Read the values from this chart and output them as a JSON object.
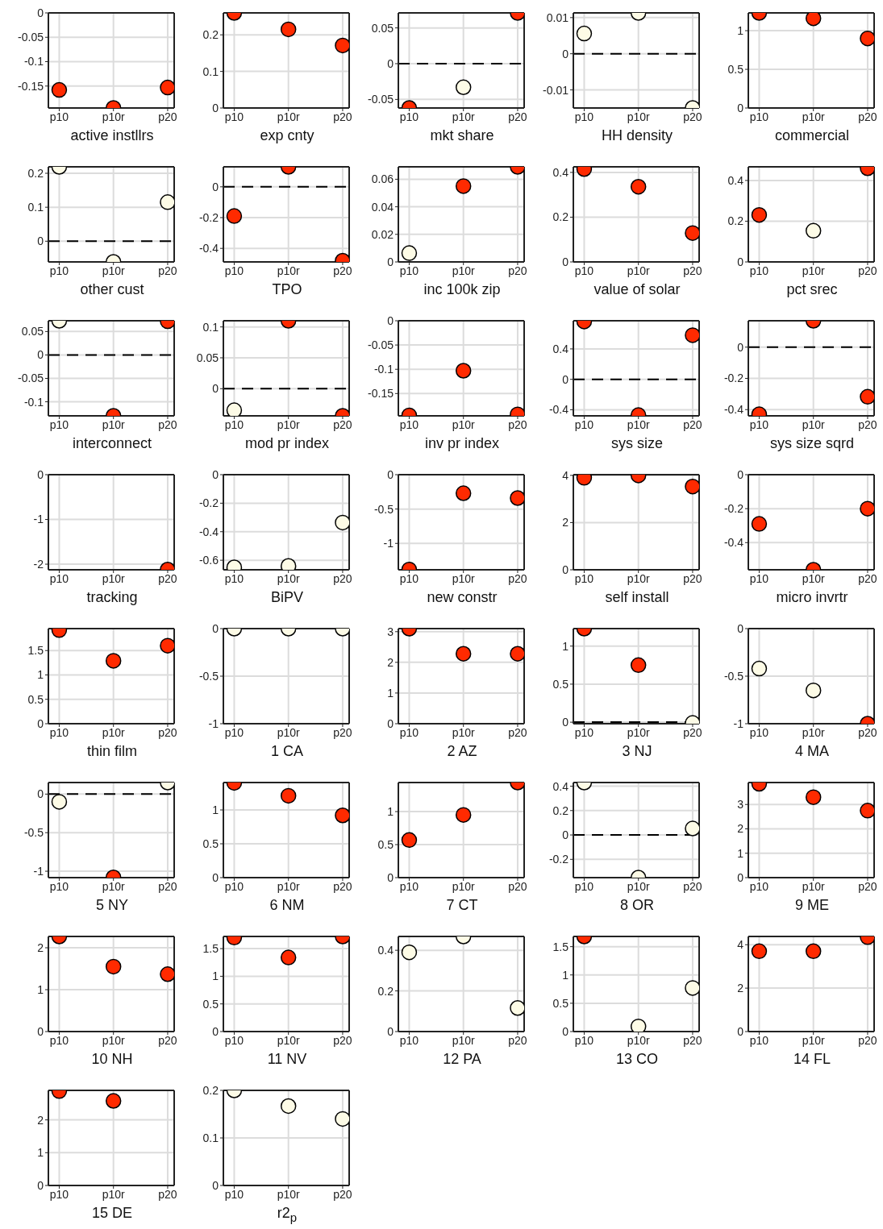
{
  "chart_data": [
    {
      "type": "scatter",
      "xlabel": "active instllrs",
      "categories": [
        "p10",
        "p10r",
        "p20"
      ],
      "values": [
        -0.158,
        -0.195,
        -0.153
      ],
      "colors": [
        "#ff2a00",
        "#ff2a00",
        "#ff2a00"
      ],
      "ylim": [
        -0.195,
        0
      ],
      "yticks": [
        -0.15,
        -0.1,
        -0.05,
        0
      ],
      "grid": true,
      "marker": "circle"
    },
    {
      "type": "scatter",
      "xlabel": "exp cnty",
      "categories": [
        "p10",
        "p10r",
        "p20"
      ],
      "values": [
        0.26,
        0.215,
        0.171
      ],
      "colors": [
        "#ff2a00",
        "#ff2a00",
        "#ff2a00"
      ],
      "ylim": [
        0,
        0.26
      ],
      "yticks": [
        0,
        0.1,
        0.2
      ],
      "grid": true,
      "marker": "circle"
    },
    {
      "type": "scatter",
      "xlabel": "mkt share",
      "categories": [
        "p10",
        "p10r",
        "p20"
      ],
      "values": [
        -0.062,
        -0.033,
        0.071
      ],
      "colors": [
        "#ff2a00",
        "#fdfbe6",
        "#ff2a00"
      ],
      "ylim": [
        -0.062,
        0.071
      ],
      "yticks": [
        -0.05,
        0,
        0.05
      ],
      "grid": true,
      "marker": "circle",
      "ref_lines": [
        {
          "axis": "y",
          "value": 0,
          "line_style": "dashed"
        }
      ]
    },
    {
      "type": "scatter",
      "xlabel": "HH density",
      "categories": [
        "p10",
        "p10r",
        "p20"
      ],
      "values": [
        0.0056,
        0.0113,
        -0.015
      ],
      "colors": [
        "#fdfbe6",
        "#fdfbe6",
        "#fdfbe6"
      ],
      "ylim": [
        -0.015,
        0.0113
      ],
      "yticks": [
        -0.01,
        0,
        0.01
      ],
      "grid": true,
      "marker": "circle",
      "ref_lines": [
        {
          "axis": "y",
          "value": 0,
          "line_style": "dashed"
        }
      ]
    },
    {
      "type": "scatter",
      "xlabel": "commercial",
      "categories": [
        "p10",
        "p10r",
        "p20"
      ],
      "values": [
        1.23,
        1.16,
        0.9
      ],
      "colors": [
        "#ff2a00",
        "#ff2a00",
        "#ff2a00"
      ],
      "ylim": [
        0,
        1.23
      ],
      "yticks": [
        0,
        0.5,
        1
      ],
      "grid": true,
      "marker": "circle"
    },
    {
      "type": "scatter",
      "xlabel": "other cust",
      "categories": [
        "p10",
        "p10r",
        "p20"
      ],
      "values": [
        0.219,
        -0.061,
        0.115
      ],
      "colors": [
        "#fdfbe6",
        "#fdfbe6",
        "#fdfbe6"
      ],
      "ylim": [
        -0.061,
        0.219
      ],
      "yticks": [
        0,
        0.1,
        0.2
      ],
      "grid": true,
      "marker": "circle",
      "ref_lines": [
        {
          "axis": "y",
          "value": 0,
          "line_style": "dashed"
        }
      ]
    },
    {
      "type": "scatter",
      "xlabel": "TPO",
      "categories": [
        "p10",
        "p10r",
        "p20"
      ],
      "values": [
        -0.19,
        0.13,
        -0.48
      ],
      "colors": [
        "#ff2a00",
        "#ff2a00",
        "#ff2a00"
      ],
      "ylim": [
        -0.488,
        0.13
      ],
      "yticks": [
        -0.4,
        -0.2,
        0
      ],
      "grid": true,
      "marker": "circle",
      "ref_lines": [
        {
          "axis": "y",
          "value": 0,
          "line_style": "dashed"
        }
      ]
    },
    {
      "type": "scatter",
      "xlabel": "inc 100k zip",
      "categories": [
        "p10",
        "p10r",
        "p20"
      ],
      "values": [
        0.0064,
        0.055,
        0.069
      ],
      "colors": [
        "#fdfbe6",
        "#ff2a00",
        "#ff2a00"
      ],
      "ylim": [
        0,
        0.069
      ],
      "yticks": [
        0,
        0.02,
        0.04,
        0.06
      ],
      "grid": true,
      "marker": "circle"
    },
    {
      "type": "scatter",
      "xlabel": "value of solar",
      "categories": [
        "p10",
        "p10r",
        "p20"
      ],
      "values": [
        0.415,
        0.336,
        0.129
      ],
      "colors": [
        "#ff2a00",
        "#ff2a00",
        "#ff2a00"
      ],
      "ylim": [
        0,
        0.425
      ],
      "yticks": [
        0,
        0.2,
        0.4
      ],
      "grid": true,
      "marker": "circle"
    },
    {
      "type": "scatter",
      "xlabel": "pct srec",
      "categories": [
        "p10",
        "p10r",
        "p20"
      ],
      "values": [
        0.231,
        0.153,
        0.46
      ],
      "colors": [
        "#ff2a00",
        "#fdfbe6",
        "#ff2a00"
      ],
      "ylim": [
        0,
        0.467
      ],
      "yticks": [
        0,
        0.2,
        0.4
      ],
      "grid": true,
      "marker": "circle"
    },
    {
      "type": "scatter",
      "xlabel": "interconnect",
      "categories": [
        "p10",
        "p10r",
        "p20"
      ],
      "values": [
        0.073,
        -0.13,
        0.072
      ],
      "colors": [
        "#fdfbe6",
        "#ff2a00",
        "#ff2a00"
      ],
      "ylim": [
        -0.13,
        0.073
      ],
      "yticks": [
        -0.1,
        -0.05,
        0,
        0.05
      ],
      "grid": true,
      "marker": "circle",
      "ref_lines": [
        {
          "axis": "y",
          "value": 0,
          "line_style": "dashed"
        }
      ]
    },
    {
      "type": "scatter",
      "xlabel": "mod pr index",
      "categories": [
        "p10",
        "p10r",
        "p20"
      ],
      "values": [
        -0.035,
        0.11,
        -0.044
      ],
      "colors": [
        "#fdfbe6",
        "#ff2a00",
        "#ff2a00"
      ],
      "ylim": [
        -0.044,
        0.11
      ],
      "yticks": [
        0,
        0.05,
        0.1
      ],
      "grid": true,
      "marker": "circle",
      "ref_lines": [
        {
          "axis": "y",
          "value": 0,
          "line_style": "dashed"
        }
      ]
    },
    {
      "type": "scatter",
      "xlabel": "inv pr index",
      "categories": [
        "p10",
        "p10r",
        "p20"
      ],
      "values": [
        -0.195,
        -0.103,
        -0.193
      ],
      "colors": [
        "#ff2a00",
        "#ff2a00",
        "#ff2a00"
      ],
      "ylim": [
        -0.196,
        0
      ],
      "yticks": [
        -0.15,
        -0.1,
        -0.05,
        0
      ],
      "grid": true,
      "marker": "circle"
    },
    {
      "type": "scatter",
      "xlabel": "sys size",
      "categories": [
        "p10",
        "p10r",
        "p20"
      ],
      "values": [
        0.76,
        -0.47,
        0.58
      ],
      "colors": [
        "#ff2a00",
        "#ff2a00",
        "#ff2a00"
      ],
      "ylim": [
        -0.48,
        0.77
      ],
      "yticks": [
        -0.4,
        0,
        0.4
      ],
      "grid": true,
      "marker": "circle",
      "ref_lines": [
        {
          "axis": "y",
          "value": 0,
          "line_style": "dashed"
        }
      ]
    },
    {
      "type": "scatter",
      "xlabel": "sys size sqrd",
      "categories": [
        "p10",
        "p10r",
        "p20"
      ],
      "values": [
        -0.43,
        0.169,
        -0.318
      ],
      "colors": [
        "#ff2a00",
        "#ff2a00",
        "#ff2a00"
      ],
      "ylim": [
        -0.44,
        0.169
      ],
      "yticks": [
        -0.4,
        -0.2,
        0
      ],
      "grid": true,
      "marker": "circle",
      "ref_lines": [
        {
          "axis": "y",
          "value": 0,
          "line_style": "dashed"
        }
      ]
    },
    {
      "type": "scatter",
      "xlabel": "tracking",
      "categories": [
        "p10",
        "p10r",
        "p20"
      ],
      "values": [
        null,
        null,
        -2.12
      ],
      "colors": [
        "#ff2a00",
        "#ff2a00",
        "#ff2a00"
      ],
      "ylim": [
        -2.125,
        0
      ],
      "yticks": [
        -2,
        -1,
        0
      ],
      "grid": true,
      "marker": "circle"
    },
    {
      "type": "scatter",
      "xlabel": "BiPV",
      "categories": [
        "p10",
        "p10r",
        "p20"
      ],
      "values": [
        -0.65,
        -0.64,
        -0.336
      ],
      "colors": [
        "#fdfbe6",
        "#fdfbe6",
        "#fdfbe6"
      ],
      "ylim": [
        -0.667,
        0
      ],
      "yticks": [
        -0.6,
        -0.4,
        -0.2,
        0
      ],
      "grid": true,
      "marker": "circle"
    },
    {
      "type": "scatter",
      "xlabel": "new constr",
      "categories": [
        "p10",
        "p10r",
        "p20"
      ],
      "values": [
        -1.38,
        -0.27,
        -0.34
      ],
      "colors": [
        "#ff2a00",
        "#ff2a00",
        "#ff2a00"
      ],
      "ylim": [
        -1.384,
        0
      ],
      "yticks": [
        -1,
        -0.5,
        0
      ],
      "grid": true,
      "marker": "circle"
    },
    {
      "type": "scatter",
      "xlabel": "self install",
      "categories": [
        "p10",
        "p10r",
        "p20"
      ],
      "values": [
        3.9,
        4.0,
        3.53
      ],
      "colors": [
        "#ff2a00",
        "#ff2a00",
        "#ff2a00"
      ],
      "ylim": [
        0,
        4.03
      ],
      "yticks": [
        0,
        2,
        4
      ],
      "grid": true,
      "marker": "circle"
    },
    {
      "type": "scatter",
      "xlabel": "micro invrtr",
      "categories": [
        "p10",
        "p10r",
        "p20"
      ],
      "values": [
        -0.29,
        -0.56,
        -0.2
      ],
      "colors": [
        "#ff2a00",
        "#ff2a00",
        "#ff2a00"
      ],
      "ylim": [
        -0.56,
        0
      ],
      "yticks": [
        -0.4,
        -0.2,
        0
      ],
      "grid": true,
      "marker": "circle"
    },
    {
      "type": "scatter",
      "xlabel": "thin film",
      "categories": [
        "p10",
        "p10r",
        "p20"
      ],
      "values": [
        1.92,
        1.29,
        1.6
      ],
      "colors": [
        "#ff2a00",
        "#ff2a00",
        "#ff2a00"
      ],
      "ylim": [
        0,
        1.95
      ],
      "yticks": [
        0,
        0.5,
        1,
        1.5
      ],
      "grid": true,
      "marker": "circle"
    },
    {
      "type": "scatter",
      "xlabel": "1 CA",
      "categories": [
        "p10",
        "p10r",
        "p20"
      ],
      "values": [
        0,
        0,
        0
      ],
      "colors": [
        "#fdfbe6",
        "#fdfbe6",
        "#fdfbe6"
      ],
      "ylim": [
        -1,
        0
      ],
      "yticks": [
        -1,
        -0.5,
        0
      ],
      "grid": true,
      "marker": "circle"
    },
    {
      "type": "scatter",
      "xlabel": "2 AZ",
      "categories": [
        "p10",
        "p10r",
        "p20"
      ],
      "values": [
        3.1,
        2.28,
        2.28
      ],
      "colors": [
        "#ff2a00",
        "#ff2a00",
        "#ff2a00"
      ],
      "ylim": [
        0,
        3.1
      ],
      "yticks": [
        0,
        1,
        2,
        3
      ],
      "grid": true,
      "marker": "circle"
    },
    {
      "type": "scatter",
      "xlabel": "3 NJ",
      "categories": [
        "p10",
        "p10r",
        "p20"
      ],
      "values": [
        1.23,
        0.75,
        -0.01
      ],
      "colors": [
        "#ff2a00",
        "#ff2a00",
        "#fdfbe6"
      ],
      "ylim": [
        -0.02,
        1.23
      ],
      "yticks": [
        0,
        0.5,
        1
      ],
      "grid": true,
      "marker": "circle",
      "ref_lines": [
        {
          "axis": "y",
          "value": 0,
          "line_style": "dashed"
        }
      ]
    },
    {
      "type": "scatter",
      "xlabel": "4 MA",
      "categories": [
        "p10",
        "p10r",
        "p20"
      ],
      "values": [
        -0.42,
        -0.65,
        -1.0
      ],
      "colors": [
        "#fdfbe6",
        "#fdfbe6",
        "#ff2a00"
      ],
      "ylim": [
        -1,
        0
      ],
      "yticks": [
        -1,
        -0.5,
        0
      ],
      "grid": true,
      "marker": "circle"
    },
    {
      "type": "scatter",
      "xlabel": "5 NY",
      "categories": [
        "p10",
        "p10r",
        "p20"
      ],
      "values": [
        -0.1,
        -1.08,
        0.15
      ],
      "colors": [
        "#fdfbe6",
        "#ff2a00",
        "#fdfbe6"
      ],
      "ylim": [
        -1.083,
        0.15
      ],
      "yticks": [
        -1,
        -0.5,
        0
      ],
      "grid": true,
      "marker": "circle",
      "ref_lines": [
        {
          "axis": "y",
          "value": 0,
          "line_style": "dashed"
        }
      ]
    },
    {
      "type": "scatter",
      "xlabel": "6 NM",
      "categories": [
        "p10",
        "p10r",
        "p20"
      ],
      "values": [
        1.4,
        1.21,
        0.92
      ],
      "colors": [
        "#ff2a00",
        "#ff2a00",
        "#ff2a00"
      ],
      "ylim": [
        0,
        1.405
      ],
      "yticks": [
        0,
        0.5,
        1
      ],
      "grid": true,
      "marker": "circle"
    },
    {
      "type": "scatter",
      "xlabel": "7 CT",
      "categories": [
        "p10",
        "p10r",
        "p20"
      ],
      "values": [
        0.57,
        0.95,
        1.44
      ],
      "colors": [
        "#ff2a00",
        "#ff2a00",
        "#ff2a00"
      ],
      "ylim": [
        0,
        1.44
      ],
      "yticks": [
        0,
        0.5,
        1
      ],
      "grid": true,
      "marker": "circle"
    },
    {
      "type": "scatter",
      "xlabel": "8 OR",
      "categories": [
        "p10",
        "p10r",
        "p20"
      ],
      "values": [
        0.43,
        -0.35,
        0.053
      ],
      "colors": [
        "#fdfbe6",
        "#fdfbe6",
        "#fdfbe6"
      ],
      "ylim": [
        -0.35,
        0.43
      ],
      "yticks": [
        -0.2,
        0,
        0.2,
        0.4
      ],
      "grid": true,
      "marker": "circle",
      "ref_lines": [
        {
          "axis": "y",
          "value": 0,
          "line_style": "dashed"
        }
      ]
    },
    {
      "type": "scatter",
      "xlabel": "9 ME",
      "categories": [
        "p10",
        "p10r",
        "p20"
      ],
      "values": [
        3.85,
        3.3,
        2.75
      ],
      "colors": [
        "#ff2a00",
        "#ff2a00",
        "#ff2a00"
      ],
      "ylim": [
        0,
        3.9
      ],
      "yticks": [
        0,
        1,
        2,
        3
      ],
      "grid": true,
      "marker": "circle"
    },
    {
      "type": "scatter",
      "xlabel": "10 NH",
      "categories": [
        "p10",
        "p10r",
        "p20"
      ],
      "values": [
        2.27,
        1.55,
        1.37
      ],
      "colors": [
        "#ff2a00",
        "#ff2a00",
        "#ff2a00"
      ],
      "ylim": [
        0,
        2.27
      ],
      "yticks": [
        0,
        1,
        2
      ],
      "grid": true,
      "marker": "circle"
    },
    {
      "type": "scatter",
      "xlabel": "11 NV",
      "categories": [
        "p10",
        "p10r",
        "p20"
      ],
      "values": [
        1.7,
        1.34,
        1.72
      ],
      "colors": [
        "#ff2a00",
        "#ff2a00",
        "#ff2a00"
      ],
      "ylim": [
        0,
        1.72
      ],
      "yticks": [
        0,
        0.5,
        1,
        1.5
      ],
      "grid": true,
      "marker": "circle"
    },
    {
      "type": "scatter",
      "xlabel": "12 PA",
      "categories": [
        "p10",
        "p10r",
        "p20"
      ],
      "values": [
        0.39,
        0.468,
        0.116
      ],
      "colors": [
        "#fdfbe6",
        "#fdfbe6",
        "#fdfbe6"
      ],
      "ylim": [
        0,
        0.468
      ],
      "yticks": [
        0,
        0.2,
        0.4
      ],
      "grid": true,
      "marker": "circle"
    },
    {
      "type": "scatter",
      "xlabel": "13 CO",
      "categories": [
        "p10",
        "p10r",
        "p20"
      ],
      "values": [
        1.68,
        0.09,
        0.77
      ],
      "colors": [
        "#ff2a00",
        "#fdfbe6",
        "#fdfbe6"
      ],
      "ylim": [
        0,
        1.68
      ],
      "yticks": [
        0,
        0.5,
        1,
        1.5
      ],
      "grid": true,
      "marker": "circle"
    },
    {
      "type": "scatter",
      "xlabel": "14 FL",
      "categories": [
        "p10",
        "p10r",
        "p20"
      ],
      "values": [
        3.7,
        3.7,
        4.35
      ],
      "colors": [
        "#ff2a00",
        "#ff2a00",
        "#ff2a00"
      ],
      "ylim": [
        0,
        4.38
      ],
      "yticks": [
        0,
        2,
        4
      ],
      "grid": true,
      "marker": "circle"
    },
    {
      "type": "scatter",
      "xlabel": "15 DE",
      "categories": [
        "p10",
        "p10r",
        "p20"
      ],
      "values": [
        2.88,
        2.58,
        null
      ],
      "colors": [
        "#ff2a00",
        "#ff2a00",
        "#ff2a00"
      ],
      "ylim": [
        0,
        2.9
      ],
      "yticks": [
        0,
        1,
        2
      ],
      "grid": true,
      "marker": "circle"
    },
    {
      "type": "scatter",
      "xlabel": "r2$_{p}$",
      "categories": [
        "p10",
        "p10r",
        "p20"
      ],
      "values": [
        0.2,
        0.167,
        0.14
      ],
      "colors": [
        "#fdfbe6",
        "#fdfbe6",
        "#fdfbe6"
      ],
      "ylim": [
        0,
        0.2
      ],
      "yticks": [
        0,
        0.1,
        0.2
      ],
      "grid": true,
      "marker": "circle"
    }
  ]
}
